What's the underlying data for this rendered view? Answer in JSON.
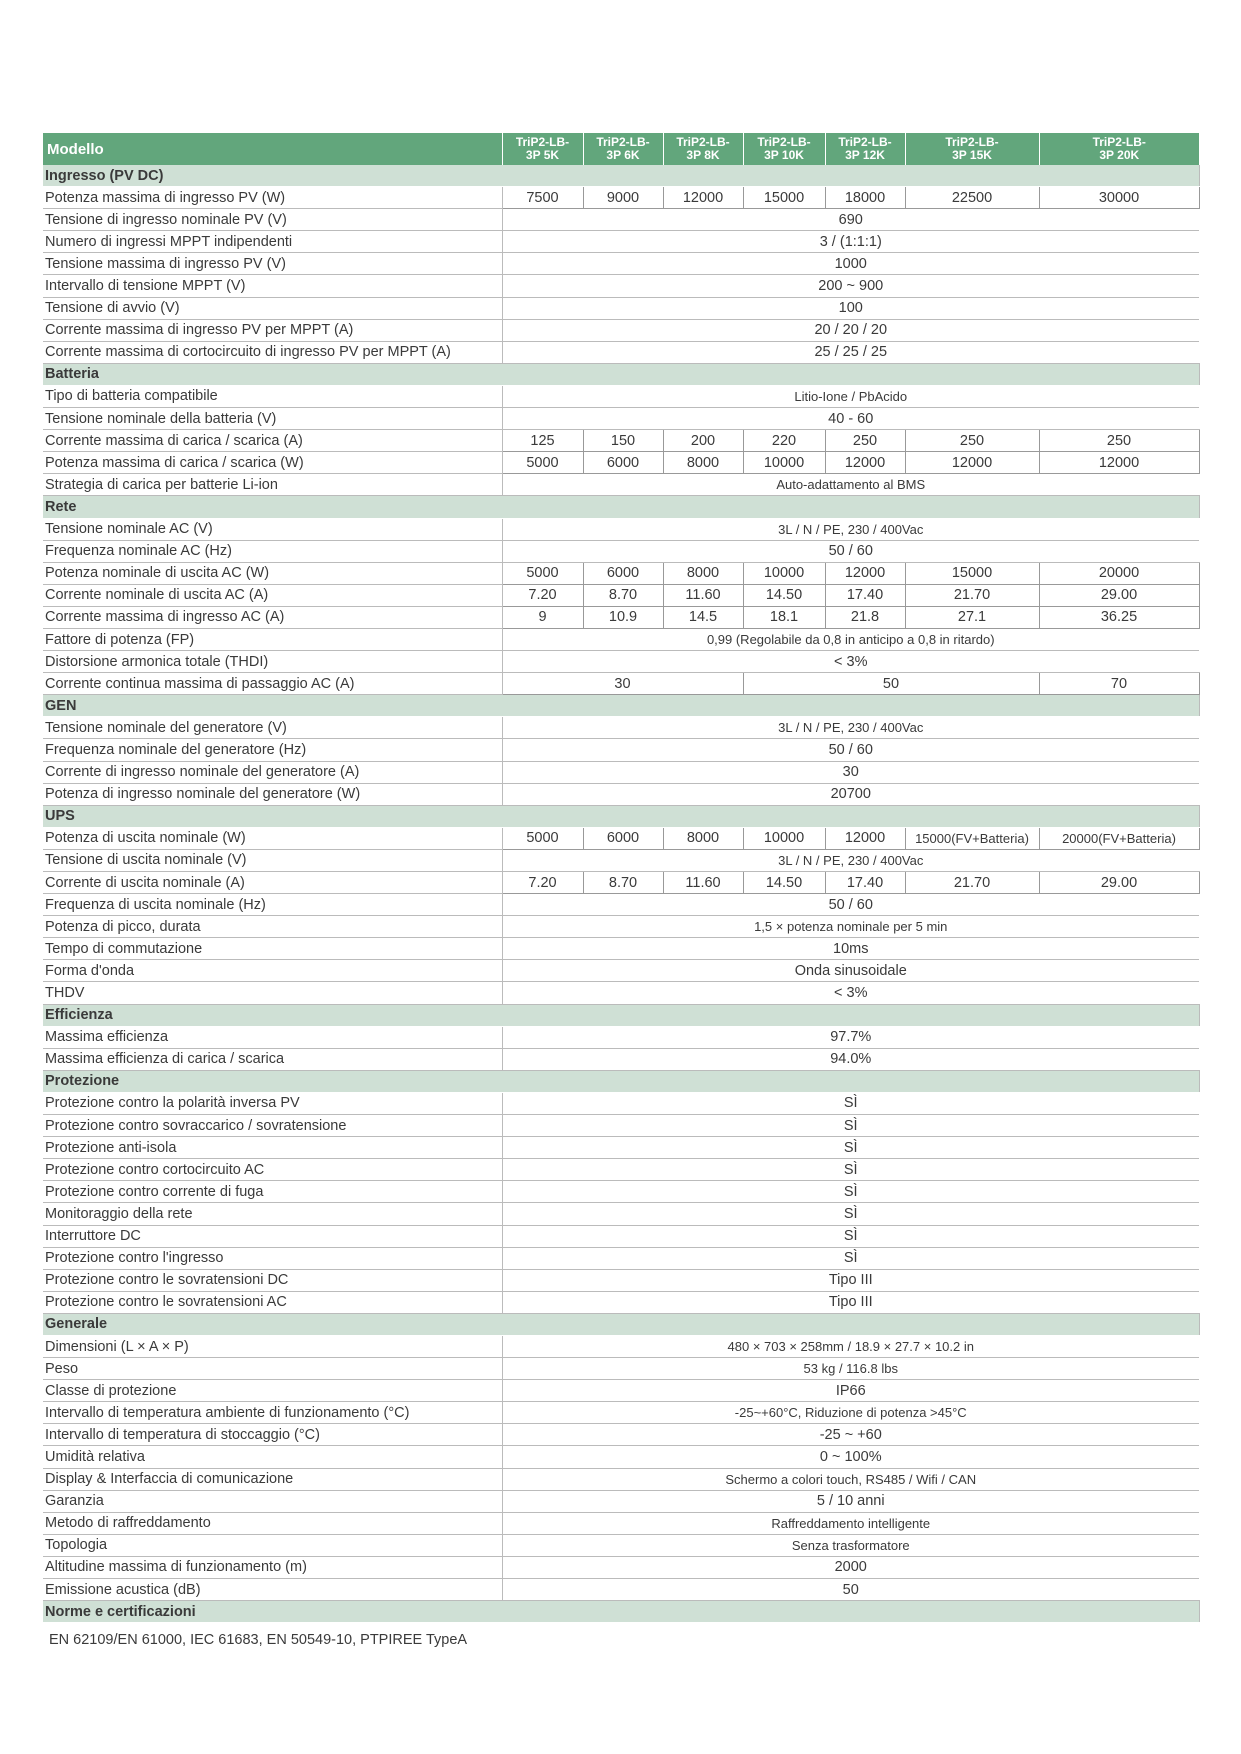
{
  "colors": {
    "header": "#62a67c",
    "section": "#cfe0d5"
  },
  "header": {
    "label": "Modello",
    "models": [
      "TriP2-LB-\n3P 5K",
      "TriP2-LB-\n3P 6K",
      "TriP2-LB-\n3P 8K",
      "TriP2-LB-\n3P 10K",
      "TriP2-LB-\n3P 12K",
      "TriP2-LB-\n3P 15K",
      "TriP2-LB-\n3P 20K"
    ]
  },
  "rows": [
    {
      "section": "Ingresso (PV DC)"
    },
    {
      "label": "Potenza massima di ingresso PV (W)",
      "cells": [
        [
          "7500",
          1
        ],
        [
          "9000",
          1
        ],
        [
          "12000",
          1
        ],
        [
          "15000",
          1
        ],
        [
          "18000",
          1
        ],
        [
          "22500",
          1
        ],
        [
          "30000",
          1
        ]
      ],
      "box": true
    },
    {
      "label": "Tensione di ingresso nominale PV (V)",
      "cells": [
        [
          "690",
          7
        ]
      ]
    },
    {
      "label": "Numero di ingressi MPPT indipendenti",
      "cells": [
        [
          "3 / (1:1:1)",
          7
        ]
      ]
    },
    {
      "label": "Tensione massima di ingresso PV (V)",
      "cells": [
        [
          "1000",
          7
        ]
      ]
    },
    {
      "label": "Intervallo di tensione MPPT (V)",
      "cells": [
        [
          "200 ~ 900",
          7
        ]
      ]
    },
    {
      "label": "Tensione di avvio (V)",
      "cells": [
        [
          "100",
          7
        ]
      ]
    },
    {
      "label": "Corrente massima di ingresso PV per MPPT (A)",
      "cells": [
        [
          "20 / 20 / 20",
          7
        ]
      ]
    },
    {
      "label": "Corrente massima di cortocircuito di ingresso PV per MPPT (A)",
      "cells": [
        [
          "25 / 25 / 25",
          7
        ]
      ]
    },
    {
      "section": "Batteria"
    },
    {
      "label": "Tipo di batteria compatibile",
      "cells": [
        [
          "Litio-Ione / PbAcido",
          7
        ]
      ]
    },
    {
      "label": "Tensione nominale della batteria (V)",
      "cells": [
        [
          "40 - 60",
          7
        ]
      ]
    },
    {
      "label": "Corrente massima di carica / scarica (A)",
      "cells": [
        [
          "125",
          1
        ],
        [
          "150",
          1
        ],
        [
          "200",
          1
        ],
        [
          "220",
          1
        ],
        [
          "250",
          1
        ],
        [
          "250",
          1
        ],
        [
          "250",
          1
        ]
      ],
      "box": true
    },
    {
      "label": "Potenza massima di carica / scarica (W)",
      "cells": [
        [
          "5000",
          1
        ],
        [
          "6000",
          1
        ],
        [
          "8000",
          1
        ],
        [
          "10000",
          1
        ],
        [
          "12000",
          1
        ],
        [
          "12000",
          1
        ],
        [
          "12000",
          1
        ]
      ],
      "box": true
    },
    {
      "label": "Strategia di carica per batterie Li-ion",
      "cells": [
        [
          "Auto-adattamento al BMS",
          7
        ]
      ]
    },
    {
      "section": "Rete"
    },
    {
      "label": "Tensione nominale AC (V)",
      "cells": [
        [
          "3L / N / PE, 230 / 400Vac",
          7
        ]
      ]
    },
    {
      "label": "Frequenza nominale AC (Hz)",
      "cells": [
        [
          "50 / 60",
          7
        ]
      ]
    },
    {
      "label": "Potenza nominale di uscita AC (W)",
      "cells": [
        [
          "5000",
          1
        ],
        [
          "6000",
          1
        ],
        [
          "8000",
          1
        ],
        [
          "10000",
          1
        ],
        [
          "12000",
          1
        ],
        [
          "15000",
          1
        ],
        [
          "20000",
          1
        ]
      ],
      "box": true
    },
    {
      "label": "Corrente nominale di uscita AC (A)",
      "cells": [
        [
          "7.20",
          1
        ],
        [
          "8.70",
          1
        ],
        [
          "11.60",
          1
        ],
        [
          "14.50",
          1
        ],
        [
          "17.40",
          1
        ],
        [
          "21.70",
          1
        ],
        [
          "29.00",
          1
        ]
      ],
      "box": true
    },
    {
      "label": "Corrente massima di ingresso AC (A)",
      "cells": [
        [
          "9",
          1
        ],
        [
          "10.9",
          1
        ],
        [
          "14.5",
          1
        ],
        [
          "18.1",
          1
        ],
        [
          "21.8",
          1
        ],
        [
          "27.1",
          1
        ],
        [
          "36.25",
          1
        ]
      ],
      "box": true
    },
    {
      "label": "Fattore di potenza (FP)",
      "cells": [
        [
          "0,99 (Regolabile da 0,8 in anticipo a 0,8 in ritardo)",
          7
        ]
      ]
    },
    {
      "label": "Distorsione armonica totale (THDI)",
      "cells": [
        [
          "< 3%",
          7
        ]
      ]
    },
    {
      "label": "Corrente continua massima di passaggio AC (A)",
      "cells": [
        [
          "30",
          3
        ],
        [
          "50",
          3
        ],
        [
          "70",
          1
        ]
      ],
      "box": true
    },
    {
      "section": "GEN"
    },
    {
      "label": "Tensione nominale del generatore (V)",
      "cells": [
        [
          "3L / N / PE, 230 / 400Vac",
          7
        ]
      ]
    },
    {
      "label": "Frequenza nominale del generatore (Hz)",
      "cells": [
        [
          "50 / 60",
          7
        ]
      ]
    },
    {
      "label": "Corrente di ingresso nominale del generatore (A)",
      "cells": [
        [
          "30",
          7
        ]
      ]
    },
    {
      "label": "Potenza di ingresso nominale del generatore (W)",
      "cells": [
        [
          "20700",
          7
        ]
      ]
    },
    {
      "section": "UPS"
    },
    {
      "label": "Potenza di uscita nominale (W)",
      "cells": [
        [
          "5000",
          1
        ],
        [
          "6000",
          1
        ],
        [
          "8000",
          1
        ],
        [
          "10000",
          1
        ],
        [
          "12000",
          1
        ],
        [
          "15000(FV+Batteria)",
          1
        ],
        [
          "20000(FV+Batteria)",
          1
        ]
      ],
      "box": true
    },
    {
      "label": "Tensione di uscita nominale (V)",
      "cells": [
        [
          "3L / N / PE, 230 / 400Vac",
          7
        ]
      ]
    },
    {
      "label": "Corrente di uscita nominale (A)",
      "cells": [
        [
          "7.20",
          1
        ],
        [
          "8.70",
          1
        ],
        [
          "11.60",
          1
        ],
        [
          "14.50",
          1
        ],
        [
          "17.40",
          1
        ],
        [
          "21.70",
          1
        ],
        [
          "29.00",
          1
        ]
      ],
      "box": true
    },
    {
      "label": "Frequenza di uscita nominale (Hz)",
      "cells": [
        [
          "50 / 60",
          7
        ]
      ]
    },
    {
      "label": "Potenza di picco, durata",
      "cells": [
        [
          "1,5 × potenza nominale per 5 min",
          7
        ]
      ]
    },
    {
      "label": "Tempo di commutazione",
      "cells": [
        [
          "10ms",
          7
        ]
      ]
    },
    {
      "label": "Forma d'onda",
      "cells": [
        [
          "Onda sinusoidale",
          7
        ]
      ]
    },
    {
      "label": "THDV",
      "cells": [
        [
          "< 3%",
          7
        ]
      ]
    },
    {
      "section": "Efficienza"
    },
    {
      "label": "Massima efficienza",
      "cells": [
        [
          "97.7%",
          7
        ]
      ]
    },
    {
      "label": "Massima efficienza di carica / scarica",
      "cells": [
        [
          "94.0%",
          7
        ]
      ]
    },
    {
      "section": "Protezione"
    },
    {
      "label": "Protezione contro la polarità inversa PV",
      "cells": [
        [
          "SÌ",
          7
        ]
      ]
    },
    {
      "label": "Protezione contro sovraccarico / sovratensione",
      "cells": [
        [
          "SÌ",
          7
        ]
      ]
    },
    {
      "label": "Protezione anti-isola",
      "cells": [
        [
          "SÌ",
          7
        ]
      ]
    },
    {
      "label": "Protezione contro cortocircuito AC",
      "cells": [
        [
          "SÌ",
          7
        ]
      ]
    },
    {
      "label": "Protezione contro corrente di fuga",
      "cells": [
        [
          "SÌ",
          7
        ]
      ]
    },
    {
      "label": "Monitoraggio della rete",
      "cells": [
        [
          "SÌ",
          7
        ]
      ]
    },
    {
      "label": "Interruttore DC",
      "cells": [
        [
          "SÌ",
          7
        ]
      ]
    },
    {
      "label": "Protezione contro l'ingresso",
      "cells": [
        [
          "SÌ",
          7
        ]
      ]
    },
    {
      "label": "Protezione contro le sovratensioni DC",
      "cells": [
        [
          "Tipo III",
          7
        ]
      ]
    },
    {
      "label": "Protezione contro le sovratensioni AC",
      "cells": [
        [
          "Tipo III",
          7
        ]
      ]
    },
    {
      "section": "Generale"
    },
    {
      "label": "Dimensioni  (L × A × P)",
      "cells": [
        [
          "480 × 703 × 258mm / 18.9 × 27.7 × 10.2 in",
          7
        ]
      ]
    },
    {
      "label": "Peso",
      "cells": [
        [
          "53 kg / 116.8 lbs",
          7
        ]
      ]
    },
    {
      "label": "Classe di protezione",
      "cells": [
        [
          "IP66",
          7
        ]
      ]
    },
    {
      "label": "Intervallo di temperatura ambiente di funzionamento (°C)",
      "cells": [
        [
          "-25~+60°C, Riduzione di potenza >45°C",
          7
        ]
      ]
    },
    {
      "label": "Intervallo di temperatura di stoccaggio (°C)",
      "cells": [
        [
          "-25 ~ +60",
          7
        ]
      ]
    },
    {
      "label": "Umidità relativa",
      "cells": [
        [
          "0 ~ 100%",
          7
        ]
      ]
    },
    {
      "label": "Display & Interfaccia di comunicazione",
      "cells": [
        [
          "Schermo a colori touch, RS485 / Wifi / CAN",
          7
        ]
      ]
    },
    {
      "label": "Garanzia",
      "cells": [
        [
          "5 / 10 anni",
          7
        ]
      ]
    },
    {
      "label": "Metodo di raffreddamento",
      "cells": [
        [
          "Raffreddamento intelligente",
          7
        ]
      ]
    },
    {
      "label": "Topologia",
      "cells": [
        [
          "Senza trasformatore",
          7
        ]
      ]
    },
    {
      "label": "Altitudine massima di funzionamento (m)",
      "cells": [
        [
          "2000",
          7
        ]
      ]
    },
    {
      "label": "Emissione acustica (dB)",
      "cells": [
        [
          "50",
          7
        ]
      ]
    },
    {
      "section": "Norme e certificazioni"
    }
  ],
  "footer": "EN 62109/EN 61000, IEC 61683, EN 50549-10, PTPIREE TypeA"
}
